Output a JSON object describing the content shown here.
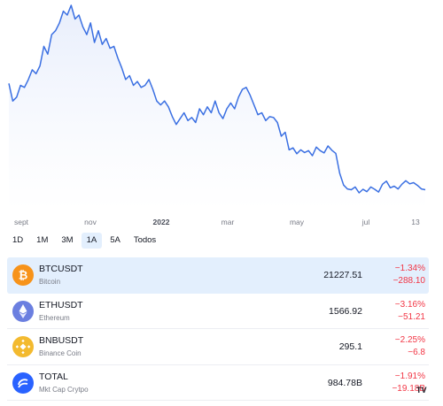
{
  "chart": {
    "line_color": "#3a6fe2",
    "fill_color": "#e8eefc",
    "x_ticks": [
      {
        "label": "sept",
        "bold": false
      },
      {
        "label": "nov",
        "bold": false
      },
      {
        "label": "2022",
        "bold": true
      },
      {
        "label": "mar",
        "bold": false
      },
      {
        "label": "may",
        "bold": false
      },
      {
        "label": "jul",
        "bold": false
      },
      {
        "label": "13",
        "bold": false
      }
    ]
  },
  "chart_data": {
    "type": "area",
    "x_labels": [
      "sept",
      "nov",
      "2022",
      "mar",
      "may",
      "jul",
      "13"
    ],
    "series": [
      {
        "values": [
          47500,
          43000,
          44000,
          47000,
          46500,
          48500,
          51000,
          50000,
          52000,
          57000,
          55000,
          60000,
          61000,
          63000,
          66000,
          65000,
          67500,
          64000,
          65000,
          62000,
          60000,
          63000,
          58000,
          61000,
          57500,
          59000,
          56500,
          57000,
          54000,
          51500,
          48500,
          49500,
          47000,
          48000,
          46500,
          47000,
          48500,
          46000,
          43000,
          42000,
          43000,
          41500,
          39000,
          37000,
          38500,
          40000,
          38000,
          38800,
          37500,
          41000,
          39500,
          41500,
          40000,
          43000,
          40000,
          38500,
          41000,
          42500,
          41000,
          44000,
          46000,
          46500,
          44500,
          42000,
          39500,
          40000,
          38000,
          39000,
          38800,
          37500,
          34000,
          35000,
          30500,
          31000,
          29500,
          30500,
          29800,
          30300,
          29000,
          31200,
          30300,
          29700,
          31500,
          30400,
          29600,
          24500,
          21500,
          20500,
          20300,
          21000,
          19500,
          20400,
          19800,
          21000,
          20400,
          19700,
          21700,
          22500,
          20800,
          21200,
          20500,
          21700,
          22600,
          21800,
          22100,
          21400,
          20500,
          20300
        ]
      }
    ]
  },
  "ranges": [
    {
      "label": "1D",
      "active": false
    },
    {
      "label": "1M",
      "active": false
    },
    {
      "label": "3M",
      "active": false
    },
    {
      "label": "1A",
      "active": true
    },
    {
      "label": "5A",
      "active": false
    },
    {
      "label": "Todos",
      "active": false
    }
  ],
  "rows": [
    {
      "symbol": "BTCUSDT",
      "name": "Bitcoin",
      "price": "21227.51",
      "change_pct": "−1.34%",
      "change": "−288.10",
      "icon": "bitcoin-icon",
      "icon_color": "#f7931a",
      "selected": true
    },
    {
      "symbol": "ETHUSDT",
      "name": "Ethereum",
      "price": "1566.92",
      "change_pct": "−3.16%",
      "change": "−51.21",
      "icon": "ethereum-icon",
      "icon_color": "#6b7fe0",
      "selected": false
    },
    {
      "symbol": "BNBUSDT",
      "name": "Binance Coin",
      "price": "295.1",
      "change_pct": "−2.25%",
      "change": "−6.8",
      "icon": "binance-icon",
      "icon_color": "#f3ba2f",
      "selected": false
    },
    {
      "symbol": "TOTAL",
      "name": "Mkt Cap Crytpo",
      "price": "984.78B",
      "change_pct": "−1.91%",
      "change": "−19.18B",
      "icon": "total-market-icon",
      "icon_color": "#2962ff",
      "selected": false
    }
  ],
  "branding": {
    "logo_text": "TV"
  }
}
